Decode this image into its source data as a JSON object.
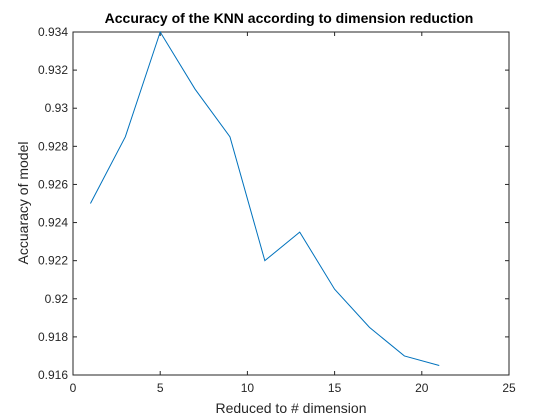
{
  "chart_data": {
    "type": "line",
    "title": "Accuracy of the KNN according to dimension reduction",
    "xlabel": "Reduced to # dimension",
    "ylabel": "Accuaracy of model",
    "xlim": [
      0,
      25
    ],
    "ylim": [
      0.916,
      0.934
    ],
    "xticks": [
      "0",
      "5",
      "10",
      "15",
      "20",
      "25"
    ],
    "xtick_values": [
      0,
      5,
      10,
      15,
      20,
      25
    ],
    "yticks": [
      "0.916",
      "0.918",
      "0.92",
      "0.922",
      "0.924",
      "0.926",
      "0.928",
      "0.93",
      "0.932",
      "0.934"
    ],
    "ytick_values": [
      0.916,
      0.918,
      0.92,
      0.922,
      0.924,
      0.926,
      0.928,
      0.93,
      0.932,
      0.934
    ],
    "grid": false,
    "series": [
      {
        "color": "#0072BD",
        "x": [
          1,
          3,
          5,
          7,
          9,
          11,
          13,
          15,
          17,
          19,
          21
        ],
        "y": [
          0.925,
          0.9285,
          0.934,
          0.931,
          0.9285,
          0.922,
          0.9235,
          0.9205,
          0.9185,
          0.917,
          0.9165
        ]
      }
    ]
  }
}
